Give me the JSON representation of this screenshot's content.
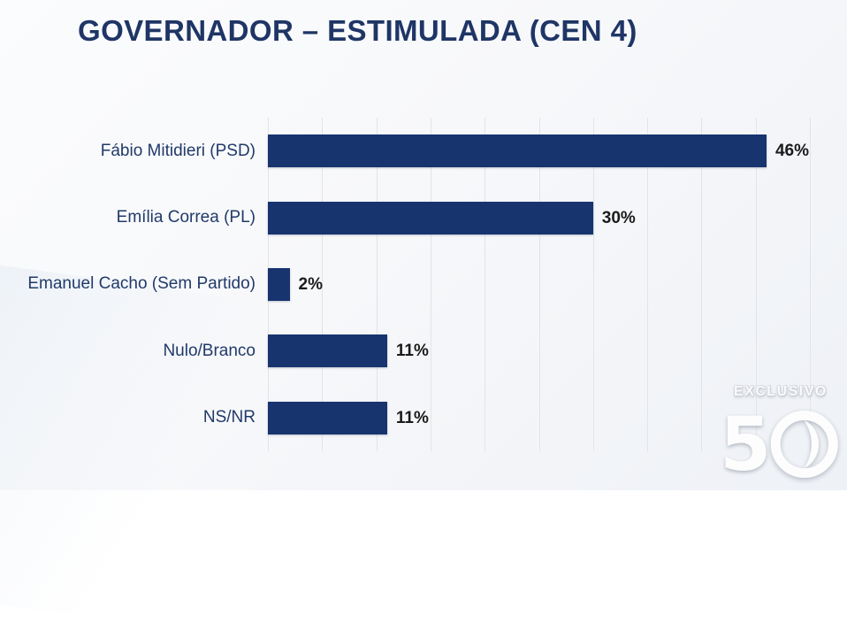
{
  "title": "GOVERNADOR – ESTIMULADA (CEN 4)",
  "chart_data": {
    "type": "bar",
    "orientation": "horizontal",
    "title": "GOVERNADOR – ESTIMULADA (CEN 4)",
    "categories": [
      "Fábio Mitidieri (PSD)",
      "Emília Correa (PL)",
      "Emanuel Cacho (Sem Partido)",
      "Nulo/Branco",
      "NS/NR"
    ],
    "values": [
      46,
      30,
      2,
      11,
      11
    ],
    "value_labels": [
      "46%",
      "30%",
      "2%",
      "11%",
      "11%"
    ],
    "xlim": [
      0,
      50
    ],
    "gridline_step": 5,
    "grid": "vertical-only",
    "legend": "none",
    "bar_color": "#17346f",
    "category_label_color": "#213a69",
    "value_label_color": "#1b1b1b",
    "gridline_color": "#e2e4ea",
    "background_color": "#f7f8fa"
  },
  "watermark": {
    "label": "EXCLUSIVO",
    "logo_text": "50"
  }
}
